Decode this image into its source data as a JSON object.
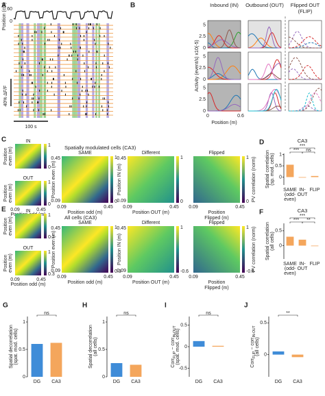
{
  "A": {
    "letter": "A",
    "ylabel": "Position (cm)",
    "yticks": [
      60,
      0
    ],
    "scale_y": "40% ΔF/F",
    "scale_x": "100 s"
  },
  "B": {
    "letter": "B",
    "titles": [
      [
        "Inbound (IN)"
      ],
      [
        "Outbound (OUT)"
      ],
      [
        "Flipped OUT",
        "(FLIP)"
      ]
    ],
    "ylabel": "Activity (event/s) x10(-5)",
    "yticks": [
      0,
      2.5,
      5
    ],
    "ylim": [
      0,
      6
    ],
    "xticks": [
      0,
      0.6
    ],
    "xlabel": "Position (m)"
  },
  "C": {
    "letter": "C",
    "title": "Spatially modulated cells (CA3)",
    "small": [
      {
        "label": "IN",
        "cbar": [
          1,
          0
        ]
      },
      {
        "label": "OUT",
        "cbar": [
          1,
          0
        ]
      }
    ],
    "small_ylabel": [
      "Position",
      "even (m)"
    ],
    "small_xlabel": "Position odd (m)",
    "ticks": [
      0.09,
      0.45
    ],
    "maps": [
      {
        "title": "SAME",
        "xlabel": [
          "Position odd (m)"
        ],
        "cbar": [
          1,
          0
        ]
      },
      {
        "title": "Different",
        "xlabel": [
          "Position OUT (m)"
        ],
        "cbar": [
          1,
          0
        ]
      },
      {
        "title": "Flipped",
        "xlabel": [
          "Position",
          "Flipped (m)"
        ],
        "cbar": [
          1,
          0
        ]
      }
    ],
    "ylabels": [
      "Position even (m)",
      "Position IN (m)"
    ],
    "cbar_label": "PV correlation (norm)"
  },
  "D": {
    "letter": "D",
    "title": "CA3",
    "ylabel": [
      [
        "Spatial correlation"
      ],
      [
        "(sp. mod. cells)"
      ]
    ],
    "categories": [
      [
        "SAME",
        "(odd-",
        "even)"
      ],
      [
        "IN-",
        "OUT"
      ],
      [
        "FLIP"
      ]
    ],
    "values": [
      0.55,
      0.0,
      0.05
    ],
    "color": "#f39c4a",
    "ylim": [
      -0.35,
      1.05
    ],
    "yticks": [
      0,
      0.5,
      1
    ],
    "sig": [
      "***",
      "***",
      "ns"
    ]
  },
  "E": {
    "letter": "E",
    "title": "All cells (CA3)",
    "small": [
      {
        "label": "IN",
        "cbar": [
          1,
          0.2
        ]
      },
      {
        "label": "OUT",
        "cbar": [
          1,
          0.3
        ]
      }
    ],
    "small_ylabel": [
      "Position",
      "even (m)"
    ],
    "small_xlabel": "Position odd (m)",
    "ticks": [
      0.09,
      0.45
    ],
    "maps": [
      {
        "title": "SAME",
        "xlabel": [
          "Position odd (m)"
        ],
        "cbar": [
          1,
          0.3
        ]
      },
      {
        "title": "Different",
        "xlabel": [
          "Position OUT (m)"
        ],
        "cbar": [
          1,
          -0.6
        ]
      },
      {
        "title": "Flipped",
        "xlabel": [
          "Position",
          "Flipped (m)"
        ],
        "cbar": [
          1,
          -0.6
        ]
      }
    ],
    "ylabels": [
      "Position even (m)",
      "Position IN (m)"
    ],
    "cbar_label": "PV correlation (norm)"
  },
  "F": {
    "letter": "F",
    "title": "CA3",
    "ylabel": [
      [
        "Spatial correlation"
      ],
      [
        "(all cells)"
      ]
    ],
    "categories": [
      [
        "SAME",
        "(odd-",
        "even)"
      ],
      [
        "IN-",
        "OUT"
      ],
      [
        "FLIP"
      ]
    ],
    "values": [
      0.3,
      0.2,
      0.0
    ],
    "color": "#f39c4a",
    "ylim": [
      -0.45,
      0.75
    ],
    "yticks": [
      0,
      0.5
    ],
    "sig": [
      "***",
      "***",
      "**"
    ]
  },
  "G": {
    "letter": "G",
    "ylabel": [
      [
        "Spatial decorrelation"
      ],
      [
        "(spat. mod. cells)"
      ]
    ],
    "categories": [
      [
        "DG"
      ],
      [
        "CA3"
      ]
    ],
    "values": [
      0.6,
      0.62
    ],
    "colors": [
      "#2a7fd4",
      "#f39c4a"
    ],
    "ylim": [
      0,
      1.1
    ],
    "yticks": [
      0,
      0.5,
      1
    ],
    "sig": [
      "ns"
    ]
  },
  "H": {
    "letter": "H",
    "ylabel": [
      [
        "Spatial decorrelation"
      ],
      [
        "(all cells)"
      ]
    ],
    "categories": [
      [
        "DG"
      ],
      [
        "CA3"
      ]
    ],
    "values": [
      0.25,
      0.22
    ],
    "colors": [
      "#2a7fd4",
      "#f39c4a"
    ],
    "ylim": [
      0,
      1.1
    ],
    "yticks": [
      0,
      0.5,
      1
    ],
    "sig": [
      "ns"
    ]
  },
  "I": {
    "letter": "I",
    "ylabel": [
      [
        "Corr",
        "FLIP",
        " − corr",
        "IN-OUT"
      ],
      [
        "(spat. mod. cells)"
      ]
    ],
    "categories": [
      [
        "DG"
      ],
      [
        "CA3"
      ]
    ],
    "values": [
      0.13,
      0.02
    ],
    "colors": [
      "#2a7fd4",
      "#f39c4a"
    ],
    "ylim": [
      -0.7,
      0.7
    ],
    "yticks": [
      -0.5,
      0,
      0.5
    ],
    "sig": [
      "ns"
    ]
  },
  "J": {
    "letter": "J",
    "ylabel": [
      [
        "Corr",
        "FLIP",
        " − corr",
        "IN-OUT"
      ],
      [
        "(all cells)"
      ]
    ],
    "categories": [
      [
        "DG"
      ],
      [
        "CA3"
      ]
    ],
    "values": [
      0.05,
      -0.04
    ],
    "colors": [
      "#2a7fd4",
      "#f39c4a"
    ],
    "ylim": [
      -0.35,
      0.6
    ],
    "yticks": [
      0,
      0.5
    ],
    "sig": [
      "**"
    ]
  }
}
